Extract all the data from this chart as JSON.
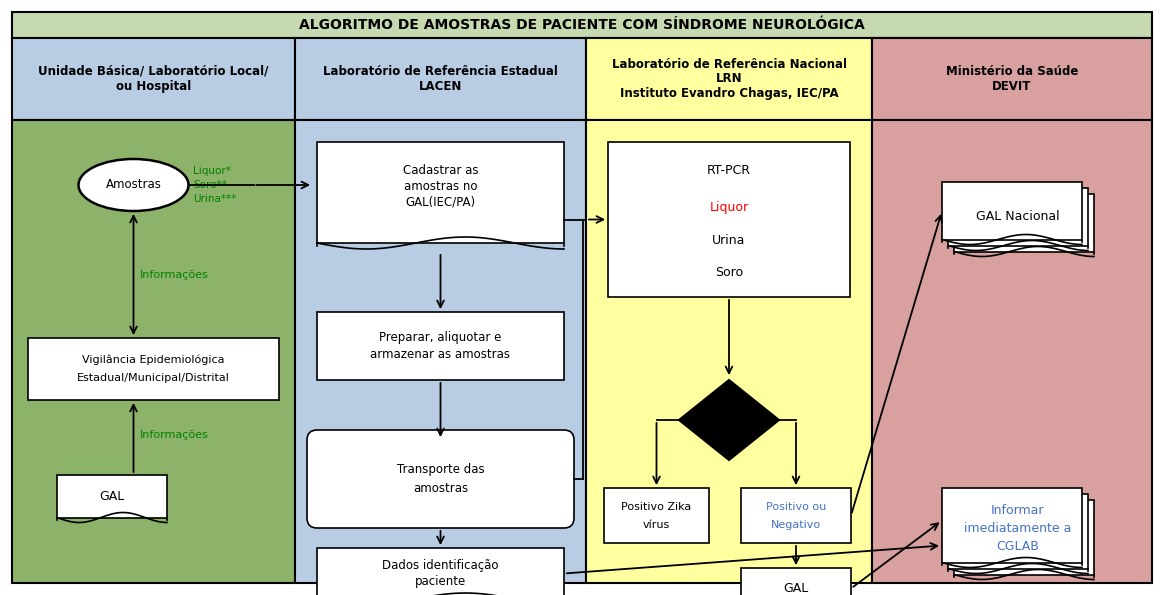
{
  "title": "ALGORITMO DE AMOSTRAS DE PACIENTE COM SÍNDROME NEUROLÓGICA",
  "title_bg": "#c6d9b0",
  "col1_header": "Unidade Básica/ Laboratório Local/\nou Hospital",
  "col2_header": "Laboratório de Referência Estadual\nLACEN",
  "col3_header": "Laboratório de Referência Nacional\nLRN\nInstituto Evandro Chagas, IEC/PA",
  "col4_header": "Ministério da Saúde\nDEVIT",
  "header_bg": "#b8cce4",
  "col3_header_bg": "#ffffa0",
  "col4_header_bg": "#d9a0a0",
  "col1_bg": "#8db36b",
  "col2_bg": "#b8cce4",
  "col3_bg": "#ffffa0",
  "col4_bg": "#d9a0a0",
  "box_fill": "#ffffff",
  "box_border": "#000000",
  "arrow_color": "#000000",
  "text_color": "#000000",
  "green_text": "#008000",
  "red_text": "#ff0000",
  "blue_text": "#4472c4",
  "figsize": [
    11.64,
    5.95
  ],
  "dpi": 100
}
